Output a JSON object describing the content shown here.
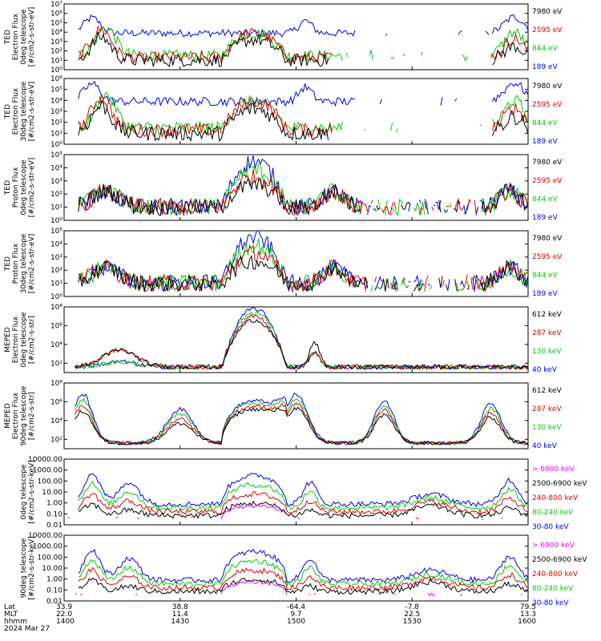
{
  "chart_data": [
    {
      "type": "line",
      "ylabel": [
        "TED",
        "Electron Flux",
        "0deg telescope",
        "[#/cm2-s-str-eV]"
      ],
      "yscale": "log",
      "ylim_exp": [
        0,
        7
      ],
      "ytick_labels": [
        "10⁰",
        "10¹",
        "10²",
        "10³",
        "10⁴",
        "10⁵",
        "10⁶",
        "10⁷"
      ],
      "series": [
        {
          "name": "7980 eV",
          "color": "#000000",
          "profile": "te_high"
        },
        {
          "name": "2595 eV",
          "color": "#dd0000",
          "profile": "te_mid"
        },
        {
          "name": "844 eV",
          "color": "#00cc00",
          "profile": "te_mid2"
        },
        {
          "name": "189 eV",
          "color": "#0000ee",
          "profile": "te_low"
        }
      ]
    },
    {
      "type": "line",
      "ylabel": [
        "TED",
        "Electron Flux",
        "30deg telescope",
        "[#/cm2-s-str-eV]"
      ],
      "yscale": "log",
      "ylim_exp": [
        0,
        6
      ],
      "ytick_labels": [
        "10⁰",
        "10¹",
        "10²",
        "10³",
        "10⁴",
        "10⁵",
        "10⁶"
      ],
      "series": [
        {
          "name": "7980 eV",
          "color": "#000000",
          "profile": "te_high"
        },
        {
          "name": "2595 eV",
          "color": "#dd0000",
          "profile": "te_mid"
        },
        {
          "name": "844 eV",
          "color": "#00cc00",
          "profile": "te_mid2"
        },
        {
          "name": "189 eV",
          "color": "#0000ee",
          "profile": "te_low"
        }
      ]
    },
    {
      "type": "line",
      "ylabel": [
        "TED",
        "Proton Flux",
        "0deg telescope",
        "[#/cm2-s-str-eV]"
      ],
      "yscale": "log",
      "ylim_exp": [
        0,
        5
      ],
      "ytick_labels": [
        "10⁰",
        "10¹",
        "10²",
        "10³",
        "10⁴",
        "10⁵"
      ],
      "series": [
        {
          "name": "7980 eV",
          "color": "#000000",
          "profile": "tp"
        },
        {
          "name": "2595 eV",
          "color": "#dd0000",
          "profile": "tp"
        },
        {
          "name": "844 eV",
          "color": "#00cc00",
          "profile": "tp"
        },
        {
          "name": "189 eV",
          "color": "#0000ee",
          "profile": "tp"
        }
      ]
    },
    {
      "type": "line",
      "ylabel": [
        "TED",
        "Proton Flux",
        "30deg telescope",
        "[#/cm2-s-str-eV]"
      ],
      "yscale": "log",
      "ylim_exp": [
        0,
        5
      ],
      "ytick_labels": [
        "10⁰",
        "10¹",
        "10²",
        "10³",
        "10⁴",
        "10⁵"
      ],
      "series": [
        {
          "name": "7980 eV",
          "color": "#000000",
          "profile": "tp"
        },
        {
          "name": "2595 eV",
          "color": "#dd0000",
          "profile": "tp"
        },
        {
          "name": "844 eV",
          "color": "#00cc00",
          "profile": "tp"
        },
        {
          "name": "189 eV",
          "color": "#0000ee",
          "profile": "tp"
        }
      ]
    },
    {
      "type": "line",
      "ylabel": [
        "MEPED",
        "Electron Flux",
        "0deg telescope",
        "[#/cm2-s-str]"
      ],
      "yscale": "log",
      "ylim_exp": [
        1,
        8
      ],
      "ytick_labels": [
        "10²",
        "10⁴",
        "10⁶",
        "10⁸"
      ],
      "ytick_exps": [
        2,
        4,
        6,
        8
      ],
      "series": [
        {
          "name": "612 keV",
          "color": "#000000",
          "profile": "me0"
        },
        {
          "name": "287 keV",
          "color": "#dd0000",
          "profile": "me0"
        },
        {
          "name": "130 keV",
          "color": "#00cc00",
          "profile": "me0"
        },
        {
          "name": "40 keV",
          "color": "#0000ee",
          "profile": "me0"
        }
      ]
    },
    {
      "type": "line",
      "ylabel": [
        "MEPED",
        "Electron Flux",
        "90deg telescope",
        "[#/cm2-s-str]"
      ],
      "yscale": "log",
      "ylim_exp": [
        1,
        8
      ],
      "ytick_labels": [
        "10²",
        "10⁴",
        "10⁶",
        "10⁸"
      ],
      "ytick_exps": [
        2,
        4,
        6,
        8
      ],
      "series": [
        {
          "name": "612 keV",
          "color": "#000000",
          "profile": "me90"
        },
        {
          "name": "287 keV",
          "color": "#dd0000",
          "profile": "me90"
        },
        {
          "name": "130 keV",
          "color": "#00cc00",
          "profile": "me90"
        },
        {
          "name": "40 keV",
          "color": "#0000ee",
          "profile": "me90"
        }
      ]
    },
    {
      "type": "line",
      "ylabel": [
        "0deg telescope",
        "[#/cm2-s-str-keV]"
      ],
      "yscale": "log",
      "ylim_exp": [
        -2,
        4
      ],
      "ytick_labels": [
        "0.01",
        "0.10",
        "1.00",
        "10.00",
        "100.00",
        "1000.00",
        "10000.00"
      ],
      "series": [
        {
          "name": "> 6900 keV",
          "color": "#ee00ee",
          "profile": "mp_ex"
        },
        {
          "name": "2500-6900 keV",
          "color": "#000000",
          "profile": "mp_c"
        },
        {
          "name": "240-800 keV",
          "color": "#dd0000",
          "profile": "mp_c"
        },
        {
          "name": "80-240 keV",
          "color": "#00cc00",
          "profile": "mp_c"
        },
        {
          "name": "30-80 keV",
          "color": "#0000ee",
          "profile": "mp_c"
        }
      ]
    },
    {
      "type": "line",
      "ylabel": [
        "90deg telescope",
        "[#/cm2-s-str-keV]"
      ],
      "yscale": "log",
      "ylim_exp": [
        -2,
        4
      ],
      "ytick_labels": [
        "0.01",
        "0.10",
        "1.00",
        "10.00",
        "100.00",
        "1000.00",
        "10000.00"
      ],
      "series": [
        {
          "name": "> 6900 keV",
          "color": "#ee00ee",
          "profile": "mp_ex"
        },
        {
          "name": "2500-6900 keV",
          "color": "#000000",
          "profile": "mp_c"
        },
        {
          "name": "240-800 keV",
          "color": "#dd0000",
          "profile": "mp_c"
        },
        {
          "name": "80-240 keV",
          "color": "#00cc00",
          "profile": "mp_c"
        },
        {
          "name": "30-80 keV",
          "color": "#0000ee",
          "profile": "mp_c"
        }
      ]
    }
  ],
  "x_axis": {
    "row_labels": [
      "Lat",
      "MLT",
      "hhmm"
    ],
    "date": "2024 Mar 27",
    "ticks": [
      {
        "lat": "33.9",
        "mlt": "22.0",
        "time": "1400"
      },
      {
        "lat": "38.8",
        "mlt": "11.4",
        "time": "1430"
      },
      {
        "lat": "-64.4",
        "mlt": "9.7",
        "time": "1500"
      },
      {
        "lat": "-7.8",
        "mlt": "22.5",
        "time": "1530"
      },
      {
        "lat": "79.5",
        "mlt": "13.3",
        "time": "1600"
      }
    ]
  }
}
